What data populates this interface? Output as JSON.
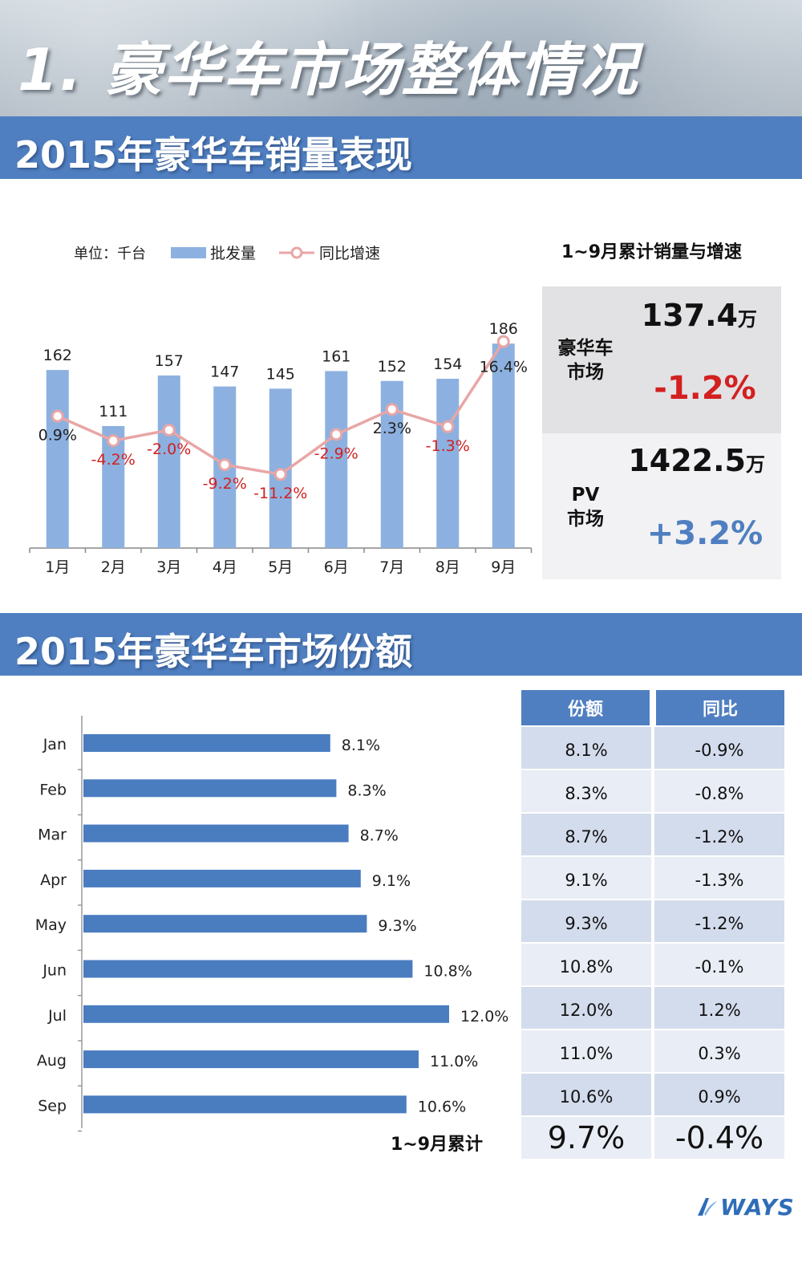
{
  "hero": {
    "title": "1. 豪华车市场整体情况"
  },
  "section1": {
    "title": "2015年豪华车销量表现"
  },
  "section2": {
    "title": "2015年豪华车市场份额"
  },
  "chart_data": [
    {
      "type": "bar",
      "title": "2015年豪华车销量表现",
      "unit_label": "单位：千台",
      "legend": [
        "批发量",
        "同比增速"
      ],
      "categories": [
        "1月",
        "2月",
        "3月",
        "4月",
        "5月",
        "6月",
        "7月",
        "8月",
        "9月"
      ],
      "series": [
        {
          "name": "批发量",
          "kind": "bar",
          "values": [
            162,
            111,
            157,
            147,
            145,
            161,
            152,
            154,
            186
          ],
          "labels": [
            "162",
            "111",
            "157",
            "147",
            "145",
            "161",
            "152",
            "154",
            "186"
          ]
        },
        {
          "name": "同比增速",
          "kind": "line",
          "values": [
            0.9,
            -4.2,
            -2.0,
            -9.2,
            -11.2,
            -2.9,
            2.3,
            -1.3,
            16.4
          ],
          "labels": [
            "0.9%",
            "-4.2%",
            "-2.0%",
            "-9.2%",
            "-11.2%",
            "-2.9%",
            "2.3%",
            "-1.3%",
            "16.4%"
          ]
        }
      ],
      "colors": {
        "bar": "#8cb1e0",
        "line": "#e8a6a6",
        "negative_label": "#d32020",
        "axis": "#888888"
      }
    },
    {
      "type": "bar",
      "orientation": "horizontal",
      "title": "2015年豪华车市场份额",
      "categories": [
        "Jan",
        "Feb",
        "Mar",
        "Apr",
        "May",
        "Jun",
        "Jul",
        "Aug",
        "Sep"
      ],
      "values": [
        8.1,
        8.3,
        8.7,
        9.1,
        9.3,
        10.8,
        12.0,
        11.0,
        10.6
      ],
      "labels": [
        "8.1%",
        "8.3%",
        "8.7%",
        "9.1%",
        "9.3%",
        "10.8%",
        "12.0%",
        "11.0%",
        "10.6%"
      ],
      "color": "#4a7cc0"
    }
  ],
  "kpi": {
    "title": "1~9月累计销量与增速",
    "luxury": {
      "label_line1": "豪华车",
      "label_line2": "市场",
      "value": "137.4",
      "unit": "万",
      "growth": "-1.2%",
      "growth_color": "#d32020"
    },
    "pv": {
      "label_line1": "PV",
      "label_line2": "市场",
      "value": "1422.5",
      "unit": "万",
      "growth": "+3.2%",
      "growth_color": "#4f7fc0"
    }
  },
  "share_table": {
    "headers": [
      "份额",
      "同比"
    ],
    "rows": [
      [
        "8.1%",
        "-0.9%"
      ],
      [
        "8.3%",
        "-0.8%"
      ],
      [
        "8.7%",
        "-1.2%"
      ],
      [
        "9.1%",
        "-1.3%"
      ],
      [
        "9.3%",
        "-1.2%"
      ],
      [
        "10.8%",
        "-0.1%"
      ],
      [
        "12.0%",
        "1.2%"
      ],
      [
        "11.0%",
        "0.3%"
      ],
      [
        "10.6%",
        "0.9%"
      ]
    ],
    "total_label": "1~9月累计",
    "total": [
      "9.7%",
      "-0.4%"
    ]
  },
  "logo": {
    "text": "WAYS"
  }
}
